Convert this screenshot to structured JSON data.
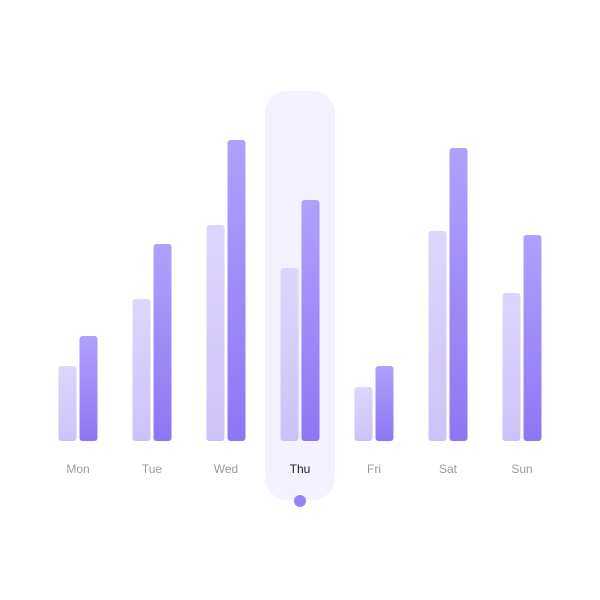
{
  "chart_data": {
    "type": "bar",
    "categories": [
      "Mon",
      "Tue",
      "Wed",
      "Thu",
      "Fri",
      "Sat",
      "Sun"
    ],
    "series": [
      {
        "values": [
          75,
          142,
          216,
          173,
          54,
          210,
          148
        ]
      },
      {
        "values": [
          105,
          197,
          301,
          241,
          75,
          293,
          206
        ]
      }
    ],
    "ylim": [
      0,
      320
    ],
    "grid": false,
    "legend": "none",
    "selected_category": "Thu"
  },
  "colors": {
    "series_light_top": "#ddd6fb",
    "series_light_bottom": "#cdc2f8",
    "series_dark_top": "#b0a0fb",
    "series_dark_bottom": "#8e76f3",
    "highlight_background": "#f4f2ff",
    "indicator_dot": "#9a83f6",
    "label": "#9a9a9a",
    "label_selected": "#222222"
  }
}
